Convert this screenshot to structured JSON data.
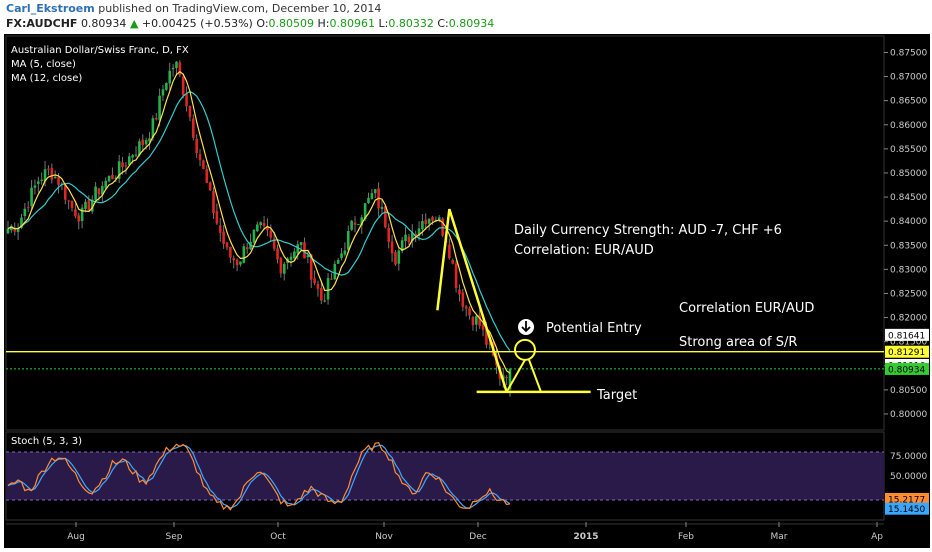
{
  "header": {
    "author": "Carl_Ekstroem",
    "published_text": "published on TradingView.com, December 10, 2014",
    "symbol": "FX:AUDCHF",
    "last": "0.80934",
    "change": "+0.00425 (+0.53%)",
    "change_arrow": "triangle-up-icon",
    "ohlc": [
      {
        "label": "O:",
        "value": "0.80509"
      },
      {
        "label": "H:",
        "value": "0.80961"
      },
      {
        "label": "L:",
        "value": "0.80332"
      },
      {
        "label": "C:",
        "value": "0.80934"
      }
    ]
  },
  "chart_data": {
    "type": "candlestick",
    "title": "Australian Dollar/Swiss Franc, D, FX",
    "indicators": [
      "MA (5, close)",
      "MA (12, close)"
    ],
    "ylim": [
      0.7975,
      0.878
    ],
    "y_ticks": [
      "0.87500",
      "0.87000",
      "0.86500",
      "0.86000",
      "0.85500",
      "0.85000",
      "0.84500",
      "0.84000",
      "0.83500",
      "0.83000",
      "0.82500",
      "0.82000",
      "0.81500",
      "0.81000",
      "0.80500",
      "0.80000"
    ],
    "x_ticks": [
      "Aug",
      "Sep",
      "Oct",
      "Nov",
      "Dec",
      "2015",
      "Feb",
      "Mar",
      "Ap"
    ],
    "price_labels": [
      {
        "value": 0.81641,
        "text": "0.81641",
        "bg": "#ffffff",
        "fg": "#000000"
      },
      {
        "value": 0.81291,
        "text": "0.81291",
        "bg": "#ffff33",
        "fg": "#000000"
      },
      {
        "value": 0.81016,
        "text": "0.81016",
        "bg": "#ffffff",
        "fg": "#000000"
      },
      {
        "value": 0.80934,
        "text": "0.80934",
        "bg": "#33cc33",
        "fg": "#000000"
      }
    ],
    "horizontal_lines": [
      {
        "value": 0.81291,
        "color": "#ffff33",
        "style": "solid"
      },
      {
        "value": 0.80934,
        "color": "#33cc33",
        "style": "dotted"
      }
    ],
    "target_value": 0.80457,
    "annotations": {
      "strength": "Daily Currency Strength: AUD -7, CHF +6",
      "correlation": "Correlation: EUR/AUD",
      "correlation2": "Correlation EUR/AUD",
      "sr": "Strong area of S/R",
      "entry": "Potential Entry",
      "target": "Target"
    },
    "anchors": [
      0.8385,
      0.8395,
      0.8445,
      0.849,
      0.8505,
      0.848,
      0.843,
      0.841,
      0.8445,
      0.8475,
      0.8495,
      0.8515,
      0.8545,
      0.8565,
      0.8605,
      0.869,
      0.873,
      0.8655,
      0.856,
      0.8475,
      0.8395,
      0.833,
      0.8315,
      0.836,
      0.8385,
      0.8365,
      0.8305,
      0.8335,
      0.835,
      0.8295,
      0.8235,
      0.8285,
      0.834,
      0.8395,
      0.8425,
      0.846,
      0.8405,
      0.8325,
      0.836,
      0.8385,
      0.841,
      0.841,
      0.836,
      0.826,
      0.821,
      0.819,
      0.8135,
      0.808,
      0.8093
    ],
    "stochastic": {
      "title": "Stoch (5, 3, 3)",
      "ylim": [
        0,
        100
      ],
      "levels": [
        80,
        20
      ],
      "k_label": "15.2177",
      "d_label": "15.1450",
      "y_ticks": [
        "75.0000",
        "50.0000"
      ],
      "k_color": "#ff8c33",
      "d_color": "#3ba7ff",
      "anchors": [
        35,
        45,
        30,
        50,
        70,
        75,
        60,
        40,
        30,
        45,
        65,
        70,
        55,
        40,
        60,
        80,
        90,
        85,
        60,
        30,
        15,
        10,
        20,
        45,
        60,
        40,
        20,
        10,
        25,
        35,
        25,
        15,
        20,
        55,
        80,
        88,
        85,
        60,
        35,
        30,
        55,
        50,
        30,
        15,
        10,
        25,
        30,
        20,
        15
      ]
    },
    "colors": {
      "up": "#22b34a",
      "down": "#e02525",
      "ma5": "#ffe14d",
      "ma12": "#33cccc",
      "annotation": "#ffff33",
      "stoch_bg": "#2a1a4a"
    }
  }
}
